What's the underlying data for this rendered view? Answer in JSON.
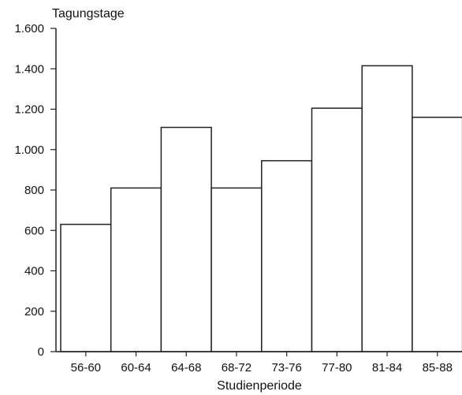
{
  "chart_data": {
    "type": "bar",
    "ylabel": "Tagungstage",
    "xlabel": "Studienperiode",
    "categories": [
      "56-60",
      "60-64",
      "64-68",
      "68-72",
      "73-76",
      "77-80",
      "81-84",
      "85-88"
    ],
    "values": [
      630,
      810,
      1110,
      810,
      945,
      1205,
      1415,
      1160
    ],
    "ylim": [
      0,
      1600
    ],
    "yticks": [
      {
        "value": 0,
        "label": "0"
      },
      {
        "value": 200,
        "label": "200"
      },
      {
        "value": 400,
        "label": "400"
      },
      {
        "value": 600,
        "label": "600"
      },
      {
        "value": 800,
        "label": "800"
      },
      {
        "value": 1000,
        "label": "1.000"
      },
      {
        "value": 1200,
        "label": "1.200"
      },
      {
        "value": 1400,
        "label": "1.400"
      },
      {
        "value": 1600,
        "label": "1.600"
      }
    ],
    "grid": false,
    "bar_fill": "#ffffff",
    "bar_stroke": "#222222"
  }
}
